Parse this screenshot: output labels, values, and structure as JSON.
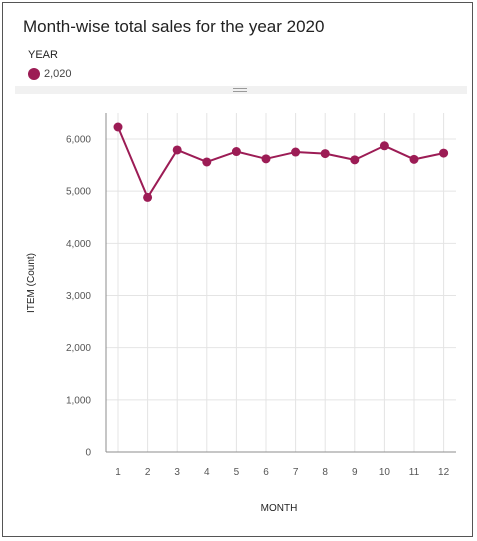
{
  "chart_data": {
    "type": "line",
    "title": "Month-wise total sales for the year 2020",
    "legend_title": "YEAR",
    "legend_placement": "top-left",
    "xlabel": "MONTH",
    "ylabel": "ITEM (Count)",
    "x": [
      1,
      2,
      3,
      4,
      5,
      6,
      7,
      8,
      9,
      10,
      11,
      12
    ],
    "ylim": [
      0,
      6000
    ],
    "yticks": [
      "0",
      "1,000",
      "2,000",
      "3,000",
      "4,000",
      "5,000",
      "6,000"
    ],
    "ytick_values": [
      0,
      1000,
      2000,
      3000,
      4000,
      5000,
      6000
    ],
    "grid": true,
    "series": [
      {
        "name": "2,020",
        "color": "#9c1c55",
        "values": [
          6230,
          4880,
          5790,
          5560,
          5760,
          5620,
          5750,
          5720,
          5600,
          5870,
          5610,
          5730
        ]
      }
    ]
  }
}
